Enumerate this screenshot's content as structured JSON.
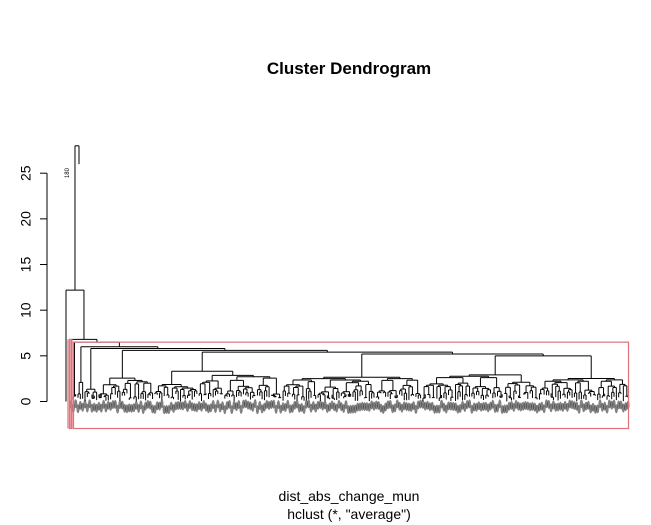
{
  "chart_data": {
    "type": "dendrogram",
    "title": "Cluster Dendrogram",
    "xlabel": "dist_abs_change_mun",
    "sublabel": "hclust (*, \"average\")",
    "ylabel": "",
    "ylim": [
      0,
      28
    ],
    "y_ticks": [
      0,
      5,
      10,
      15,
      20,
      25
    ],
    "merge_heights": [
      28.0,
      12.2,
      6.8,
      6.5,
      6.0,
      5.8,
      5.6,
      5.4,
      5.2,
      5.0,
      4.5,
      4.0,
      3.5
    ],
    "labeled_leaf": "180",
    "cut_height": 6.5,
    "cut_color": "#E0707A",
    "line_color": "#000000"
  }
}
